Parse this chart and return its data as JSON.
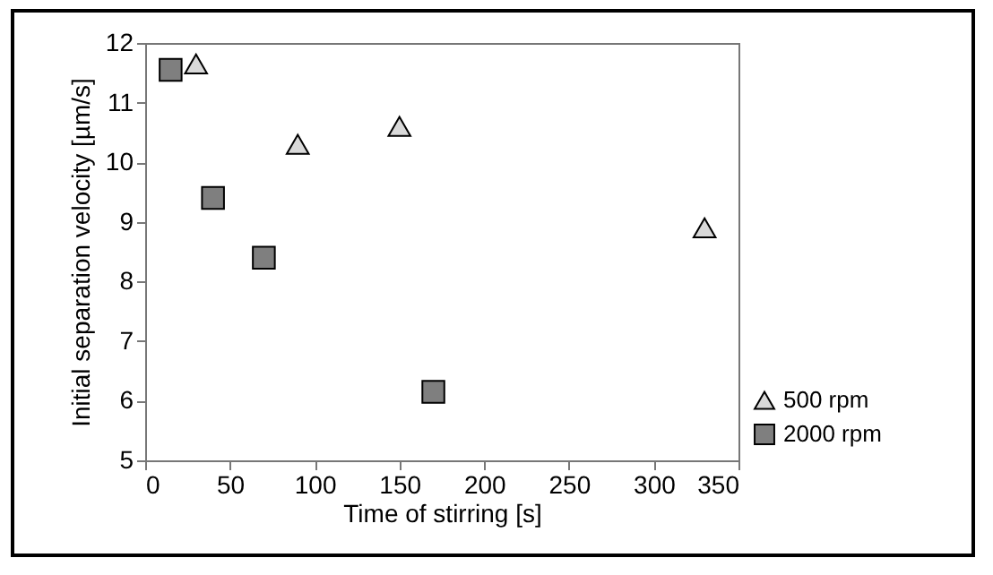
{
  "chart_data": {
    "type": "scatter",
    "xlabel": "Time of stirring [s]",
    "ylabel": "Initial separation velocity [µm/s]",
    "xlim": [
      0,
      350
    ],
    "xticks": [
      0,
      50,
      100,
      150,
      200,
      250,
      300,
      350
    ],
    "ylim": [
      5,
      12
    ],
    "yticks": [
      5,
      6,
      7,
      8,
      9,
      10,
      11,
      12
    ],
    "grid": false,
    "legend": "bottom right",
    "series": [
      {
        "name": "500 rpm",
        "color": "#d9d9d9",
        "marker": "triangle",
        "x": [
          30,
          90,
          150,
          330
        ],
        "values": [
          11.65,
          10.3,
          10.6,
          8.9
        ]
      },
      {
        "name": "2000 rpm",
        "color": "#7f7f7f",
        "marker": "square",
        "x": [
          15,
          40,
          70,
          170
        ],
        "values": [
          11.55,
          9.4,
          8.4,
          6.15
        ]
      }
    ]
  }
}
